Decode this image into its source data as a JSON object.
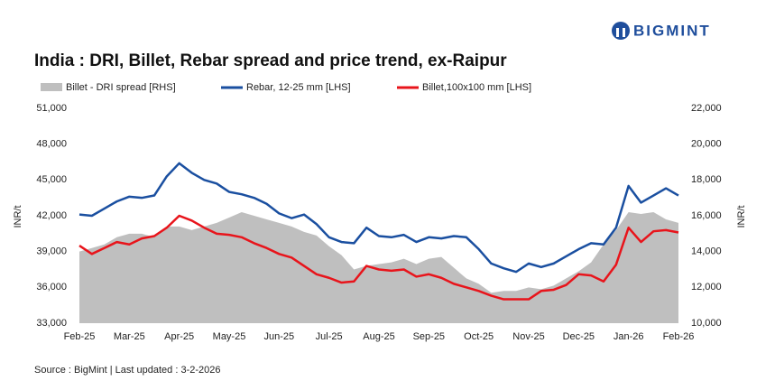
{
  "logo": "BIGMINT",
  "chart_data": {
    "type": "line",
    "title": "India : DRI, Billet, Rebar spread and price trend, ex-Raipur",
    "ylabel": "INR/t",
    "y2label": "INR/t",
    "source": "Source : BigMint | Last updated : 3-2-2026",
    "categories": [
      "Feb-25",
      null,
      null,
      null,
      "Mar-25",
      null,
      null,
      null,
      "Apr-25",
      null,
      null,
      null,
      "May-25",
      null,
      null,
      null,
      "Jun-25",
      null,
      null,
      null,
      "Jul-25",
      null,
      null,
      null,
      "Aug-25",
      null,
      null,
      null,
      "Sep-25",
      null,
      null,
      null,
      "Oct-25",
      null,
      null,
      null,
      "Nov-25",
      null,
      null,
      null,
      "Dec-25",
      null,
      null,
      null,
      "Jan-26",
      null,
      null,
      null,
      "Feb-26"
    ],
    "ylim": [
      33000,
      51000
    ],
    "yticks": [
      {
        "value": 33000,
        "label": "33,000"
      },
      {
        "value": 36000,
        "label": "36,000"
      },
      {
        "value": 39000,
        "label": "39,000"
      },
      {
        "value": 42000,
        "label": "42,000"
      },
      {
        "value": 45000,
        "label": "45,000"
      },
      {
        "value": 48000,
        "label": "48,000"
      },
      {
        "value": 51000,
        "label": "51,000"
      }
    ],
    "y2lim": [
      10000,
      22000
    ],
    "y2ticks": [
      {
        "value": 10000,
        "label": "10,000"
      },
      {
        "value": 12000,
        "label": "12,000"
      },
      {
        "value": 14000,
        "label": "14,000"
      },
      {
        "value": 16000,
        "label": "16,000"
      },
      {
        "value": 18000,
        "label": "18,000"
      },
      {
        "value": 20000,
        "label": "20,000"
      },
      {
        "value": 22000,
        "label": "22,000"
      }
    ],
    "grid": false,
    "series": [
      {
        "name": "Billet - DRI spread  [RHS]",
        "type": "area",
        "axis": "y2",
        "color": "#bfbfbf",
        "values": [
          14000,
          14200,
          14400,
          14800,
          15000,
          15000,
          14800,
          15400,
          15400,
          15200,
          15400,
          15600,
          15900,
          16200,
          16000,
          15800,
          15600,
          15400,
          15100,
          14900,
          14300,
          13800,
          13000,
          13200,
          13300,
          13400,
          13600,
          13300,
          13600,
          13700,
          13100,
          12500,
          12200,
          11700,
          11800,
          11800,
          12000,
          11900,
          12100,
          12500,
          12900,
          13400,
          14400,
          15200,
          16200,
          16100,
          16200,
          15800,
          15600
        ]
      },
      {
        "name": "Rebar, 12-25 mm [LHS]",
        "type": "line",
        "axis": "y",
        "color": "#1a4fa0",
        "values": [
          42100,
          42000,
          42600,
          43200,
          43600,
          43500,
          43700,
          45300,
          46400,
          45600,
          45000,
          44700,
          44000,
          43800,
          43500,
          43000,
          42200,
          41800,
          42100,
          41300,
          40200,
          39800,
          39700,
          41000,
          40300,
          40200,
          40400,
          39800,
          40200,
          40100,
          40300,
          40200,
          39200,
          38000,
          37600,
          37300,
          38000,
          37700,
          38000,
          38600,
          39200,
          39700,
          39600,
          41000,
          44500,
          43100,
          43700,
          44300,
          43700
        ]
      },
      {
        "name": "Billet,100x100 mm [LHS]",
        "type": "line",
        "axis": "y",
        "color": "#e8141b",
        "values": [
          39500,
          38800,
          39300,
          39800,
          39600,
          40100,
          40300,
          41000,
          42000,
          41600,
          41000,
          40500,
          40400,
          40200,
          39700,
          39300,
          38800,
          38500,
          37800,
          37100,
          36800,
          36400,
          36500,
          37800,
          37500,
          37400,
          37500,
          36900,
          37100,
          36800,
          36300,
          36000,
          35700,
          35300,
          35000,
          35000,
          35000,
          35700,
          35800,
          36200,
          37100,
          37000,
          36500,
          37900,
          41000,
          39800,
          40700,
          40800,
          40600
        ]
      }
    ]
  }
}
